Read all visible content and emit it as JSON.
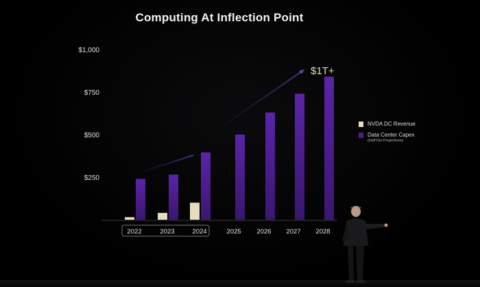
{
  "slide": {
    "title": "Computing At Inflection Point",
    "callout": "$1T+"
  },
  "legend": [
    {
      "label": "NVDA DC Revenue",
      "sub": "",
      "color": "#e6dcc2"
    },
    {
      "label": "Data Center Capex",
      "sub": "(Dell'Oro Projections)",
      "color": "#4a1f8c"
    }
  ],
  "chart_data": {
    "type": "bar",
    "title": "Computing At Inflection Point",
    "xlabel": "",
    "ylabel": "",
    "ylim": [
      0,
      1000
    ],
    "yticks": [
      "$250",
      "$500",
      "$750",
      "$1,000"
    ],
    "yticks_values": [
      250,
      500,
      750,
      1000
    ],
    "categories": [
      "2022",
      "2023",
      "2024",
      "2025",
      "2026",
      "2027",
      "2028"
    ],
    "highlighted_categories": [
      "2022",
      "2023",
      "2024"
    ],
    "series": [
      {
        "name": "NVDA DC Revenue",
        "color": "#e6dcc2",
        "values": [
          15,
          40,
          100,
          null,
          null,
          null,
          null
        ]
      },
      {
        "name": "Data Center Capex",
        "color": "#4a1f8c",
        "values": [
          240,
          265,
          395,
          500,
          630,
          740,
          840
        ]
      }
    ],
    "annotation": "$1T+",
    "grid": false,
    "legend_position": "right"
  }
}
